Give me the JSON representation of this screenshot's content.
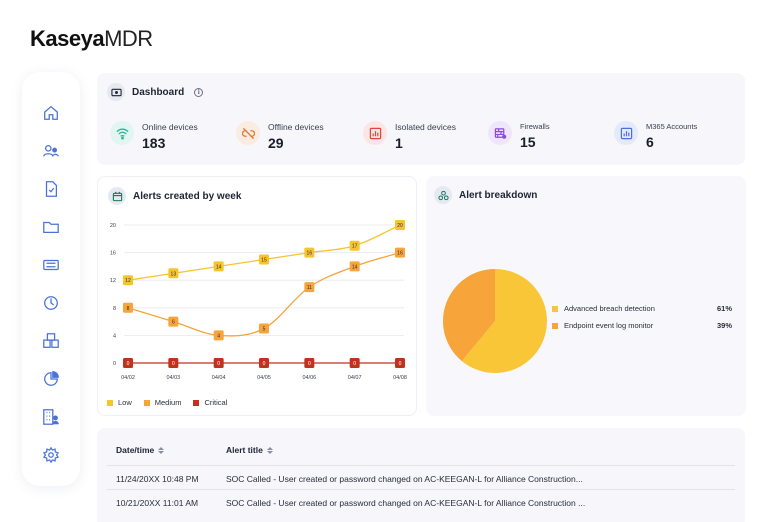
{
  "brand": {
    "name_bold": "Kaseya",
    "name_light": "MDR"
  },
  "sidebar": {
    "items": [
      {
        "icon": "home-icon"
      },
      {
        "icon": "users-icon"
      },
      {
        "icon": "document-icon"
      },
      {
        "icon": "folder-icon"
      },
      {
        "icon": "ticket-icon"
      },
      {
        "icon": "clock-icon"
      },
      {
        "icon": "packages-icon"
      },
      {
        "icon": "pie-chart-icon"
      },
      {
        "icon": "building-user-icon"
      },
      {
        "icon": "gear-icon"
      }
    ]
  },
  "dashboard": {
    "title": "Dashboard",
    "info": "i",
    "kpis": [
      {
        "label": "Online devices",
        "value": "183",
        "icon": "wifi-icon",
        "color": "#2bb39a",
        "bg": "#e3f5f0"
      },
      {
        "label": "Offline devices",
        "value": "29",
        "icon": "broken-link-icon",
        "color": "#e07a36",
        "bg": "#fbece2"
      },
      {
        "label": "Isolated devices",
        "value": "1",
        "icon": "bar-chart-red-icon",
        "color": "#e0463e",
        "bg": "#fbe6e4"
      },
      {
        "label": "Firewalls",
        "value": "15",
        "icon": "firewall-icon",
        "color": "#8a4fd8",
        "bg": "#efe6fb"
      },
      {
        "label": "M365 Accounts",
        "value": "6",
        "icon": "bar-chart-blue-icon",
        "color": "#4a72d8",
        "bg": "#e3eafb"
      }
    ]
  },
  "alerts_chart": {
    "title": "Alerts created by week",
    "legend": [
      {
        "name": "Low",
        "color": "#f6c42f"
      },
      {
        "name": "Medium",
        "color": "#f7a43a"
      },
      {
        "name": "Critical",
        "color": "#c0311e"
      }
    ]
  },
  "breakdown": {
    "title": "Alert breakdown",
    "items": [
      {
        "name": "Advanced breach detection",
        "pct": "61%",
        "color": "#f9c637"
      },
      {
        "name": "Endpoint event log monitor",
        "pct": "39%",
        "color": "#f7a43a"
      }
    ]
  },
  "table": {
    "columns": [
      "Date/time",
      "Alert title"
    ],
    "rows": [
      {
        "date": "11/24/20XX 10:48 PM",
        "title": "SOC Called - User created or password changed on AC-KEEGAN-L for Alliance Construction..."
      },
      {
        "date": "10/21/20XX 11:01 AM",
        "title": "SOC Called - User created or password changed on AC-KEEGAN-L for Alliance Construction ..."
      }
    ]
  },
  "chart_data": [
    {
      "type": "line",
      "title": "Alerts created by week",
      "x": [
        "04/02",
        "04/03",
        "04/04",
        "04/05",
        "04/06",
        "04/07",
        "04/08"
      ],
      "ylim": [
        0,
        20
      ],
      "yticks": [
        0,
        4,
        8,
        12,
        16,
        20
      ],
      "grid": true,
      "legend": "bottom",
      "series": [
        {
          "name": "Low",
          "values": [
            12,
            13,
            14,
            15,
            16,
            17,
            20
          ],
          "color": "#f6c42f"
        },
        {
          "name": "Medium",
          "values": [
            8,
            6,
            4,
            5,
            11,
            14,
            16
          ],
          "color": "#f7a43a"
        },
        {
          "name": "Critical",
          "values": [
            0,
            0,
            0,
            0,
            0,
            0,
            0
          ],
          "color": "#c0311e"
        }
      ]
    },
    {
      "type": "pie",
      "title": "Alert breakdown",
      "labels": [
        "Advanced breach detection",
        "Endpoint event log monitor"
      ],
      "values": [
        61,
        39
      ],
      "colors": [
        "#f9c637",
        "#f7a43a"
      ],
      "legend": "right"
    }
  ]
}
